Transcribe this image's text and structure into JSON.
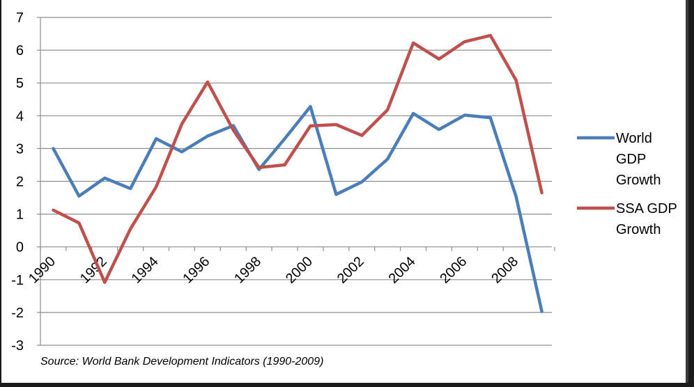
{
  "chart_data": {
    "type": "line",
    "x": [
      1990,
      1991,
      1992,
      1993,
      1994,
      1995,
      1996,
      1997,
      1998,
      1999,
      2000,
      2001,
      2002,
      2003,
      2004,
      2005,
      2006,
      2007,
      2008,
      2009
    ],
    "x_tick_labels": [
      "1990",
      "1992",
      "1994",
      "1996",
      "1998",
      "2000",
      "2002",
      "2004",
      "2006",
      "2008"
    ],
    "y_tick_labels": [
      "7",
      "6",
      "5",
      "4",
      "3",
      "2",
      "1",
      "0",
      "-1",
      "-2",
      "-3"
    ],
    "ylim": [
      -3,
      7
    ],
    "grid": true,
    "legend_position": "right",
    "series": [
      {
        "name": "World GDP Growth",
        "legend_lines": [
          "World",
          "GDP",
          "Growth"
        ],
        "color": "#4a7ebb",
        "values": [
          3.0,
          1.55,
          2.1,
          1.78,
          3.3,
          2.9,
          3.38,
          3.7,
          2.36,
          3.3,
          4.28,
          1.6,
          1.98,
          2.68,
          4.07,
          3.58,
          4.02,
          3.94,
          1.53,
          -1.97
        ]
      },
      {
        "name": "SSA GDP Growth",
        "legend_lines": [
          "SSA GDP",
          "Growth"
        ],
        "color": "#c0504d",
        "values": [
          1.12,
          0.73,
          -1.08,
          0.55,
          1.83,
          3.75,
          5.03,
          3.56,
          2.42,
          2.5,
          3.69,
          3.73,
          3.4,
          4.18,
          6.22,
          5.73,
          6.26,
          6.45,
          5.08,
          1.65
        ]
      }
    ],
    "source": "Source: World Bank Development Indicators (1990-2009)"
  }
}
